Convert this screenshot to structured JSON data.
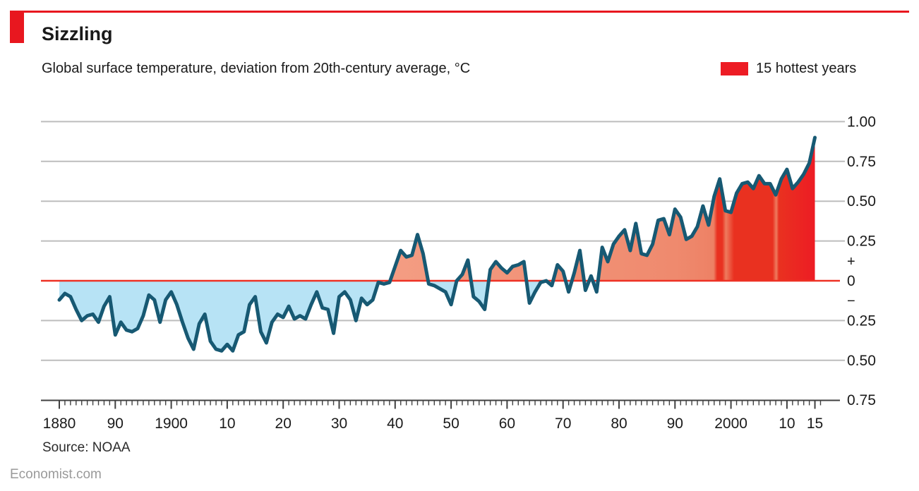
{
  "header": {
    "title": "Sizzling",
    "subtitle": "Global surface temperature, deviation from 20th-century average, °C"
  },
  "legend": {
    "label": "15 hottest years"
  },
  "source": "Source: NOAA",
  "footer": "Economist.com",
  "colors": {
    "brand_red": "#E8171F",
    "hottest_red": "#ED1C24",
    "band_red": "#E93120",
    "gap_red": "#EE7B5E",
    "warm_salmon_start": "#F49E84",
    "warm_salmon_end": "#ED8165",
    "cool_blue": "#B7E3F5",
    "line": "#175973",
    "zero_line": "#EE3124",
    "grid": "#BDBDBD",
    "axis": "#404040",
    "tick_text": "#1a1a1a"
  },
  "chart_data": {
    "type": "area",
    "title": "Sizzling",
    "ylabel": "Global surface temperature, deviation from 20th-century average, °C",
    "legend": [
      "15 hottest years"
    ],
    "legend_position": "top-right",
    "grid": true,
    "x_range": [
      1880,
      2015
    ],
    "ylim": [
      -0.75,
      1.0
    ],
    "years": {
      "start": 1880,
      "end": 2015,
      "step": 1
    },
    "values": [
      -0.12,
      -0.08,
      -0.1,
      -0.18,
      -0.25,
      -0.22,
      -0.21,
      -0.26,
      -0.16,
      -0.1,
      -0.34,
      -0.26,
      -0.31,
      -0.32,
      -0.3,
      -0.22,
      -0.09,
      -0.12,
      -0.26,
      -0.12,
      -0.07,
      -0.15,
      -0.26,
      -0.36,
      -0.43,
      -0.27,
      -0.21,
      -0.38,
      -0.43,
      -0.44,
      -0.4,
      -0.44,
      -0.34,
      -0.32,
      -0.15,
      -0.1,
      -0.32,
      -0.39,
      -0.26,
      -0.21,
      -0.23,
      -0.16,
      -0.24,
      -0.22,
      -0.24,
      -0.15,
      -0.07,
      -0.17,
      -0.18,
      -0.33,
      -0.1,
      -0.07,
      -0.12,
      -0.25,
      -0.11,
      -0.15,
      -0.12,
      -0.01,
      -0.02,
      -0.01,
      0.09,
      0.19,
      0.15,
      0.16,
      0.29,
      0.17,
      -0.02,
      -0.03,
      -0.05,
      -0.07,
      -0.15,
      0.0,
      0.04,
      0.13,
      -0.1,
      -0.13,
      -0.18,
      0.07,
      0.12,
      0.08,
      0.05,
      0.09,
      0.1,
      0.12,
      -0.14,
      -0.07,
      -0.01,
      0.0,
      -0.03,
      0.1,
      0.06,
      -0.07,
      0.05,
      0.19,
      -0.06,
      0.03,
      -0.07,
      0.21,
      0.12,
      0.23,
      0.28,
      0.32,
      0.19,
      0.36,
      0.17,
      0.16,
      0.23,
      0.38,
      0.39,
      0.29,
      0.45,
      0.4,
      0.26,
      0.28,
      0.34,
      0.47,
      0.35,
      0.53,
      0.64,
      0.44,
      0.43,
      0.55,
      0.61,
      0.62,
      0.58,
      0.66,
      0.61,
      0.61,
      0.54,
      0.64,
      0.7,
      0.58,
      0.62,
      0.67,
      0.74,
      0.9
    ],
    "hottest_years": [
      1998,
      2001,
      2002,
      2003,
      2004,
      2005,
      2006,
      2007,
      2009,
      2010,
      2011,
      2012,
      2013,
      2014,
      2015
    ],
    "x_ticks": [
      {
        "year": 1880,
        "label": "1880"
      },
      {
        "year": 1890,
        "label": "90"
      },
      {
        "year": 1900,
        "label": "1900"
      },
      {
        "year": 1910,
        "label": "10"
      },
      {
        "year": 1920,
        "label": "20"
      },
      {
        "year": 1930,
        "label": "30"
      },
      {
        "year": 1940,
        "label": "40"
      },
      {
        "year": 1950,
        "label": "50"
      },
      {
        "year": 1960,
        "label": "60"
      },
      {
        "year": 1970,
        "label": "70"
      },
      {
        "year": 1980,
        "label": "80"
      },
      {
        "year": 1990,
        "label": "90"
      },
      {
        "year": 2000,
        "label": "2000"
      },
      {
        "year": 2010,
        "label": "10"
      },
      {
        "year": 2015,
        "label": "15"
      }
    ],
    "y_ticks": [
      {
        "value": 1.0,
        "label": "1.00",
        "grid": "gray"
      },
      {
        "value": 0.75,
        "label": "0.75",
        "grid": "gray"
      },
      {
        "value": 0.5,
        "label": "0.50",
        "grid": "gray"
      },
      {
        "value": 0.25,
        "label": "0.25",
        "grid": "gray"
      },
      {
        "value": 0.125,
        "label": "+",
        "grid": "none"
      },
      {
        "value": 0,
        "label": "0",
        "grid": "zero"
      },
      {
        "value": -0.125,
        "label": "−",
        "grid": "none"
      },
      {
        "value": -0.25,
        "label": "0.25",
        "grid": "gray"
      },
      {
        "value": -0.5,
        "label": "0.50",
        "grid": "gray"
      },
      {
        "value": -0.75,
        "label": "0.75",
        "grid": "axis"
      }
    ]
  }
}
